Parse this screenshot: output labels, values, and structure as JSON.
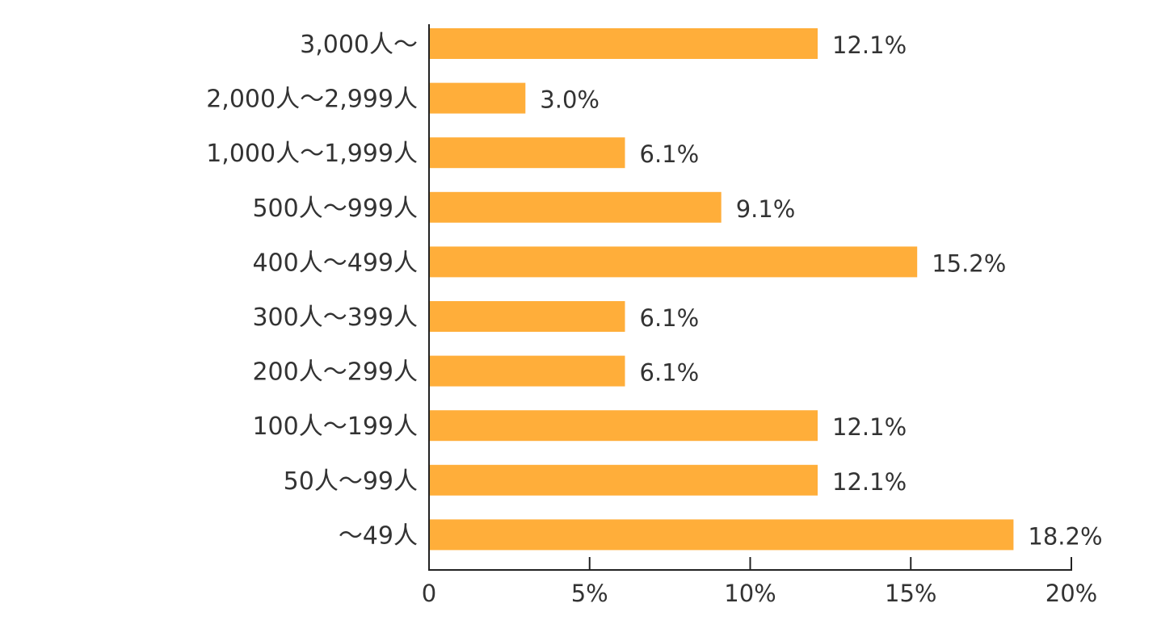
{
  "chart_data": {
    "type": "bar",
    "orientation": "horizontal",
    "categories": [
      "3,000人〜",
      "2,000人〜2,999人",
      "1,000人〜1,999人",
      "500人〜999人",
      "400人〜499人",
      "300人〜399人",
      "200人〜299人",
      "100人〜199人",
      "50人〜99人",
      "〜49人"
    ],
    "values": [
      12.1,
      3.0,
      6.1,
      9.1,
      15.2,
      6.1,
      6.1,
      12.1,
      12.1,
      18.2
    ],
    "value_labels": [
      "12.1%",
      "3.0%",
      "6.1%",
      "9.1%",
      "15.2%",
      "6.1%",
      "6.1%",
      "12.1%",
      "12.1%",
      "18.2%"
    ],
    "xlim": [
      0,
      20
    ],
    "x_ticks": [
      0,
      5,
      10,
      15,
      20
    ],
    "x_tick_labels": [
      "0",
      "5%",
      "10%",
      "15%",
      "20%"
    ],
    "bar_color": "#FFAE3A",
    "grid": false,
    "title": "",
    "xlabel": "",
    "ylabel": ""
  }
}
